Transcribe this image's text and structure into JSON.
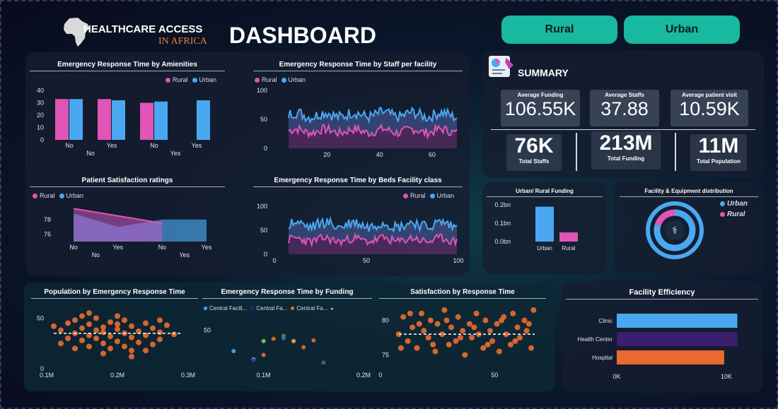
{
  "header": {
    "title_line1": "HEALTHCARE ACCESS",
    "title_line2": "IN AFRICA",
    "title_main": "DASHBOARD"
  },
  "buttons": {
    "rural": "Rural",
    "urban": "Urban"
  },
  "colors": {
    "rural": "#e055b5",
    "urban": "#4aa8f0",
    "orange": "#e86a2e",
    "teal": "#19b8a0",
    "purple": "#3d1e6e"
  },
  "legend": {
    "rural": "Rural",
    "urban": "Urban"
  },
  "summary": {
    "title": "SUMMARY",
    "kpis": [
      {
        "label": "Average Funding",
        "value": "106.55K"
      },
      {
        "label": "Average Staffs",
        "value": "37.88"
      },
      {
        "label": "Average patient visit",
        "value": "10.59K"
      }
    ],
    "totals": [
      {
        "label": "Total Staffs",
        "value": "76K"
      },
      {
        "label": "Total Funding",
        "value": "213M"
      },
      {
        "label": "Total Population",
        "value": "11M"
      }
    ]
  },
  "chart_data": [
    {
      "id": "amenities",
      "type": "bar",
      "title": "Emergency Response Time by Amienities",
      "categories": [
        "No",
        "Yes",
        "No",
        "Yes"
      ],
      "subcategories": [
        "No",
        "Yes"
      ],
      "series": [
        {
          "name": "Rural",
          "values": [
            33,
            33,
            30,
            null
          ]
        },
        {
          "name": "Urban",
          "values": [
            33,
            32,
            31,
            32
          ]
        }
      ],
      "ylim": [
        0,
        40
      ],
      "yticks": [
        "0",
        "10",
        "20",
        "30",
        "40"
      ]
    },
    {
      "id": "staff",
      "type": "line",
      "title": "Emergency Response Time by Staff per facility",
      "xlim": [
        0,
        70
      ],
      "xticks": [
        "20",
        "40",
        "60"
      ],
      "xtick_values": [
        20,
        40,
        60
      ],
      "ylim": [
        0,
        100
      ],
      "yticks": [
        "0",
        "50",
        "100"
      ],
      "series": [
        {
          "name": "Rural",
          "mean": 30,
          "amp": 8
        },
        {
          "name": "Urban",
          "mean": 58,
          "amp": 10
        }
      ]
    },
    {
      "id": "satisfaction",
      "type": "area",
      "title": "Patient Satisfaction ratings",
      "categories": [
        "No",
        "Yes",
        "No",
        "Yes"
      ],
      "subcategories": [
        "No",
        "Yes"
      ],
      "yticks": [
        "76",
        "78"
      ],
      "ylim": [
        75,
        80
      ],
      "series": [
        {
          "name": "Rural",
          "values": [
            79.5,
            78.5,
            77.5,
            null
          ]
        },
        {
          "name": "Urban",
          "values": [
            78.8,
            77.0,
            78.0,
            78.0
          ]
        }
      ]
    },
    {
      "id": "beds",
      "type": "line",
      "title": "Emergency Response Time by Beds Facility class",
      "xlim": [
        0,
        100
      ],
      "xticks": [
        "0",
        "50",
        "100"
      ],
      "xtick_values": [
        0,
        50,
        100
      ],
      "ylim": [
        0,
        100
      ],
      "yticks": [
        "0",
        "50",
        "100"
      ],
      "series": [
        {
          "name": "Rural",
          "mean": 30,
          "amp": 9
        },
        {
          "name": "Urban",
          "mean": 62,
          "amp": 12
        }
      ]
    },
    {
      "id": "funding_bar",
      "type": "bar",
      "title": "Urban/ Rural Funding",
      "categories": [
        "Urban",
        "Rural"
      ],
      "values": [
        0.19,
        0.05
      ],
      "ylim": [
        0,
        0.2
      ],
      "yticks": [
        "0.0bn",
        "0.1bn",
        "0.2bn"
      ]
    },
    {
      "id": "distribution",
      "type": "pie",
      "title": "Facility & Equipment distribution",
      "labels": [
        "Urban",
        "Rural"
      ],
      "values": [
        80,
        20
      ]
    },
    {
      "id": "pop_scatter",
      "type": "scatter",
      "title": "Population by Emergency Response Time",
      "xticks": [
        "0.1M",
        "0.2M",
        "0.3M"
      ],
      "xlim": [
        0.1,
        0.3
      ],
      "ylim": [
        0,
        60
      ],
      "yticks": [
        "0",
        "50"
      ],
      "mean_line": 35,
      "points": [
        [
          0.11,
          42
        ],
        [
          0.12,
          38
        ],
        [
          0.13,
          45
        ],
        [
          0.13,
          30
        ],
        [
          0.14,
          48
        ],
        [
          0.14,
          35
        ],
        [
          0.15,
          28
        ],
        [
          0.15,
          40
        ],
        [
          0.15,
          52
        ],
        [
          0.16,
          33
        ],
        [
          0.16,
          22
        ],
        [
          0.16,
          44
        ],
        [
          0.17,
          38
        ],
        [
          0.17,
          30
        ],
        [
          0.17,
          50
        ],
        [
          0.18,
          25
        ],
        [
          0.18,
          41
        ],
        [
          0.18,
          36
        ],
        [
          0.19,
          46
        ],
        [
          0.19,
          20
        ],
        [
          0.19,
          32
        ],
        [
          0.2,
          39
        ],
        [
          0.2,
          27
        ],
        [
          0.2,
          44
        ],
        [
          0.21,
          35
        ],
        [
          0.21,
          22
        ],
        [
          0.21,
          48
        ],
        [
          0.22,
          31
        ],
        [
          0.22,
          18
        ],
        [
          0.22,
          42
        ],
        [
          0.23,
          37
        ],
        [
          0.23,
          26
        ],
        [
          0.24,
          45
        ],
        [
          0.24,
          33
        ],
        [
          0.25,
          40
        ],
        [
          0.25,
          24
        ],
        [
          0.26,
          36
        ],
        [
          0.26,
          29
        ],
        [
          0.27,
          43
        ],
        [
          0.28,
          34
        ],
        [
          0.12,
          25
        ],
        [
          0.14,
          20
        ],
        [
          0.16,
          55
        ],
        [
          0.18,
          15
        ],
        [
          0.2,
          52
        ],
        [
          0.22,
          12
        ],
        [
          0.24,
          18
        ],
        [
          0.26,
          48
        ]
      ]
    },
    {
      "id": "funding_scatter",
      "type": "scatter",
      "title": "Emergency Response Time by Funding",
      "legend": [
        "Central Facili...",
        "Central Fa...",
        "Central Fa..."
      ],
      "xticks": [
        "0.1M",
        "0.2M"
      ],
      "xlim": [
        0.05,
        0.2
      ],
      "ylim": [
        0,
        70
      ],
      "yticks": [
        "50"
      ],
      "points": [
        [
          0.07,
          23,
          "#4aa8f0"
        ],
        [
          0.09,
          12,
          "#cfe8ff"
        ],
        [
          0.1,
          36,
          "#6ad04a"
        ],
        [
          0.11,
          39,
          "#e86a2e"
        ],
        [
          0.12,
          40,
          "#3d6ab8"
        ],
        [
          0.13,
          36,
          "#e8b040"
        ],
        [
          0.14,
          28,
          "#e86a2e"
        ],
        [
          0.15,
          37,
          "#e86a2e"
        ],
        [
          0.1,
          18,
          "#e86a2e"
        ],
        [
          0.16,
          8,
          "#2a7a5a"
        ],
        [
          0.12,
          43,
          "#4a8a3a"
        ],
        [
          0.09,
          11,
          "#1e2e8a"
        ]
      ]
    },
    {
      "id": "sat_scatter",
      "type": "scatter",
      "title": "Satisfaction by Response Time",
      "xticks": [
        "0",
        "50"
      ],
      "xlim": [
        5,
        70
      ],
      "ylim": [
        73,
        82
      ],
      "yticks": [
        "75",
        "80"
      ],
      "mean_line": 78,
      "points": [
        [
          8,
          78
        ],
        [
          10,
          80.5
        ],
        [
          12,
          77
        ],
        [
          14,
          79
        ],
        [
          16,
          76
        ],
        [
          18,
          81
        ],
        [
          19,
          78.5
        ],
        [
          21,
          77.5
        ],
        [
          22,
          80
        ],
        [
          24,
          75.5
        ],
        [
          25,
          79.5
        ],
        [
          27,
          78
        ],
        [
          28,
          81.5
        ],
        [
          30,
          76.5
        ],
        [
          31,
          79
        ],
        [
          33,
          77
        ],
        [
          34,
          80.5
        ],
        [
          36,
          78.5
        ],
        [
          37,
          75
        ],
        [
          39,
          79.5
        ],
        [
          40,
          77.5
        ],
        [
          42,
          81
        ],
        [
          43,
          78
        ],
        [
          45,
          76
        ],
        [
          46,
          80
        ],
        [
          48,
          78.5
        ],
        [
          49,
          77
        ],
        [
          51,
          79.5
        ],
        [
          52,
          75.5
        ],
        [
          54,
          80.5
        ],
        [
          55,
          78
        ],
        [
          57,
          76.5
        ],
        [
          58,
          81
        ],
        [
          60,
          79
        ],
        [
          61,
          77.5
        ],
        [
          63,
          80
        ],
        [
          64,
          78.5
        ],
        [
          66,
          76
        ],
        [
          67,
          81.5
        ],
        [
          9,
          76
        ],
        [
          13,
          81
        ],
        [
          17,
          79.5
        ],
        [
          23,
          76.5
        ],
        [
          29,
          80
        ],
        [
          35,
          77.5
        ],
        [
          41,
          79
        ],
        [
          47,
          76.5
        ],
        [
          53,
          80
        ],
        [
          59,
          77
        ],
        [
          65,
          79.5
        ]
      ]
    },
    {
      "id": "efficiency",
      "type": "bar",
      "orientation": "horizontal",
      "title": "Facility Efficiency",
      "categories": [
        "Clinic",
        "Health Center",
        "Hospital"
      ],
      "values": [
        11000,
        11000,
        9800
      ],
      "colors": [
        "#4aa8f0",
        "#3d1e6e",
        "#e86a2e"
      ],
      "xlim": [
        0,
        12000
      ],
      "xticks": [
        "0K",
        "10K"
      ],
      "xtick_values": [
        0,
        10000
      ]
    }
  ]
}
